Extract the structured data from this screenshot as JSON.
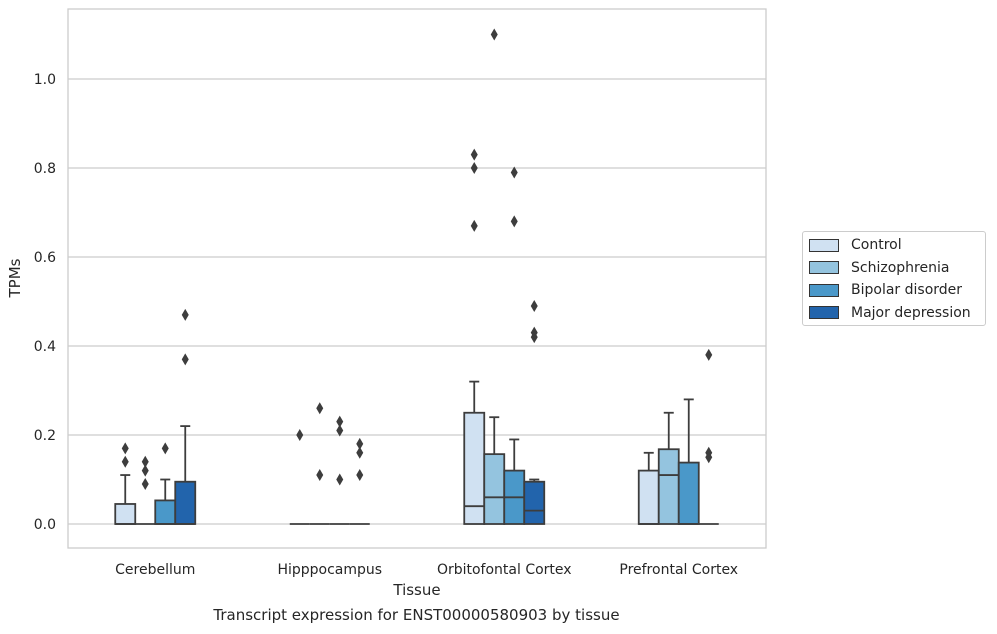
{
  "chart_data": {
    "type": "box",
    "xlabel": "Tissue",
    "ylabel": "TPMs",
    "categories": [
      "Cerebellum",
      "Hipppocampus",
      "Orbitofontal Cortex",
      "Prefrontal Cortex"
    ],
    "ylim": [
      -0.055,
      1.165
    ],
    "yticks": [
      "0.0",
      "0.2",
      "0.4",
      "0.6",
      "0.8",
      "1.0"
    ],
    "ytick_values": [
      0,
      0.2,
      0.4,
      0.6,
      0.8,
      1.0
    ],
    "grid": "horizontal",
    "legend_position": "right",
    "series": [
      {
        "name": "Control",
        "color": "#d0e1f2",
        "boxes": [
          {
            "q1": 0,
            "median": 0,
            "q3": 0.045,
            "whislo": 0,
            "whishi": 0.11,
            "fliers": [
              0.14,
              0.17
            ]
          },
          {
            "q1": 0,
            "median": 0,
            "q3": 0,
            "whislo": 0,
            "whishi": 0,
            "fliers": [
              0.2
            ]
          },
          {
            "q1": 0,
            "median": 0.04,
            "q3": 0.25,
            "whislo": 0,
            "whishi": 0.32,
            "fliers": [
              0.67,
              0.8,
              0.83
            ]
          },
          {
            "q1": 0,
            "median": 0,
            "q3": 0.12,
            "whislo": 0,
            "whishi": 0.16,
            "fliers": []
          }
        ]
      },
      {
        "name": "Schizophrenia",
        "color": "#94c4df",
        "boxes": [
          {
            "q1": 0,
            "median": 0,
            "q3": 0,
            "whislo": 0,
            "whishi": 0,
            "fliers": [
              0.09,
              0.12,
              0.14
            ]
          },
          {
            "q1": 0,
            "median": 0,
            "q3": 0,
            "whislo": 0,
            "whishi": 0,
            "fliers": [
              0.11,
              0.26
            ]
          },
          {
            "q1": 0,
            "median": 0.06,
            "q3": 0.157,
            "whislo": 0,
            "whishi": 0.24,
            "fliers": [
              1.1
            ]
          },
          {
            "q1": 0,
            "median": 0.11,
            "q3": 0.168,
            "whislo": 0,
            "whishi": 0.25,
            "fliers": []
          }
        ]
      },
      {
        "name": "Bipolar disorder",
        "color": "#4a98c9",
        "boxes": [
          {
            "q1": 0,
            "median": 0,
            "q3": 0.053,
            "whislo": 0,
            "whishi": 0.1,
            "fliers": [
              0.17
            ]
          },
          {
            "q1": 0,
            "median": 0,
            "q3": 0,
            "whislo": 0,
            "whishi": 0,
            "fliers": [
              0.1,
              0.21,
              0.23
            ]
          },
          {
            "q1": 0,
            "median": 0.06,
            "q3": 0.12,
            "whislo": 0,
            "whishi": 0.19,
            "fliers": [
              0.68,
              0.79
            ]
          },
          {
            "q1": 0,
            "median": 0,
            "q3": 0.138,
            "whislo": 0,
            "whishi": 0.28,
            "fliers": []
          }
        ]
      },
      {
        "name": "Major depression",
        "color": "#2264ac",
        "boxes": [
          {
            "q1": 0,
            "median": 0,
            "q3": 0.095,
            "whislo": 0,
            "whishi": 0.22,
            "fliers": [
              0.37,
              0.47
            ]
          },
          {
            "q1": 0,
            "median": 0,
            "q3": 0,
            "whislo": 0,
            "whishi": 0,
            "fliers": [
              0.11,
              0.16,
              0.18
            ]
          },
          {
            "q1": 0,
            "median": 0.03,
            "q3": 0.095,
            "whislo": 0,
            "whishi": 0.1,
            "fliers": [
              0.42,
              0.43,
              0.49
            ]
          },
          {
            "q1": 0,
            "median": 0,
            "q3": 0,
            "whislo": 0,
            "whishi": 0,
            "fliers": [
              0.15,
              0.16,
              0.38
            ]
          }
        ]
      }
    ]
  },
  "caption": "Transcript expression for ENST00000580903 by tissue"
}
